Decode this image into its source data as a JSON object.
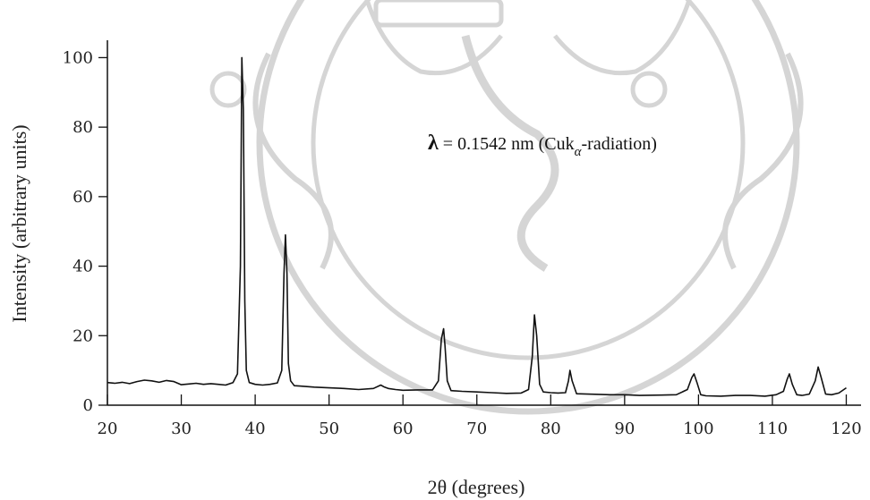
{
  "chart_data": {
    "type": "line",
    "title": "",
    "xlabel": "2θ (degrees)",
    "ylabel": "Intensity (arbitrary units)",
    "xlim": [
      20,
      122
    ],
    "ylim": [
      0,
      105
    ],
    "x_ticks": [
      20,
      30,
      40,
      50,
      60,
      70,
      80,
      90,
      100,
      110,
      120
    ],
    "y_ticks": [
      0,
      20,
      40,
      60,
      80,
      100
    ],
    "grid": false,
    "legend": "none",
    "annotation": {
      "lambda_symbol": "λ",
      "text": " = 0.1542 nm (Cuk",
      "subscript": "α",
      "suffix": "-radiation)"
    },
    "series": [
      {
        "x": [
          20,
          21,
          22,
          23,
          24,
          25,
          26,
          27,
          28,
          29,
          30,
          31,
          32,
          33,
          34,
          35,
          36,
          37,
          37.6,
          38.0,
          38.2,
          38.4,
          38.6,
          38.8,
          39.2,
          40,
          41,
          42,
          43,
          43.6,
          43.9,
          44.1,
          44.3,
          44.5,
          44.8,
          45.3,
          46,
          48,
          50,
          52,
          54,
          56,
          57,
          57.5,
          58,
          59,
          60,
          62,
          64,
          64.8,
          65.2,
          65.5,
          65.7,
          66.0,
          66.5,
          68,
          70,
          72,
          74,
          76,
          77.0,
          77.5,
          77.8,
          78.1,
          78.5,
          79,
          80,
          81,
          82.0,
          82.4,
          82.6,
          82.9,
          83.5,
          85,
          88,
          90,
          92,
          95,
          97,
          98.5,
          99.1,
          99.4,
          99.8,
          100.3,
          101,
          103,
          105,
          107,
          109,
          110.5,
          111.5,
          112.0,
          112.3,
          112.7,
          113.3,
          114,
          115,
          115.8,
          116.2,
          116.6,
          117.2,
          118,
          119,
          120
        ],
        "y": [
          6.5,
          6.3,
          6.6,
          6.2,
          6.8,
          7.2,
          7.0,
          6.6,
          7.1,
          6.8,
          5.9,
          6.1,
          6.3,
          6.0,
          6.2,
          6.0,
          5.8,
          6.5,
          9,
          40,
          100,
          85,
          30,
          10,
          6.5,
          6.0,
          5.8,
          6.0,
          6.4,
          10,
          38,
          49,
          38,
          12,
          7,
          5.6,
          5.5,
          5.2,
          5.0,
          4.8,
          4.5,
          4.8,
          5.8,
          5.2,
          4.8,
          4.5,
          4.3,
          4.4,
          4.4,
          7,
          19,
          22,
          17,
          7,
          4.2,
          4.0,
          3.8,
          3.6,
          3.4,
          3.5,
          4.5,
          14,
          26,
          20,
          6,
          3.8,
          3.6,
          3.5,
          3.6,
          7,
          10,
          7,
          3.3,
          3.2,
          3.0,
          3.0,
          2.8,
          2.9,
          3.0,
          4.5,
          8,
          9,
          6.5,
          3.0,
          2.7,
          2.6,
          2.8,
          2.8,
          2.6,
          3.0,
          4.0,
          7.5,
          9,
          6,
          3.0,
          2.8,
          3.2,
          7,
          11,
          8,
          3.2,
          3.0,
          3.5,
          5.0
        ]
      }
    ]
  }
}
